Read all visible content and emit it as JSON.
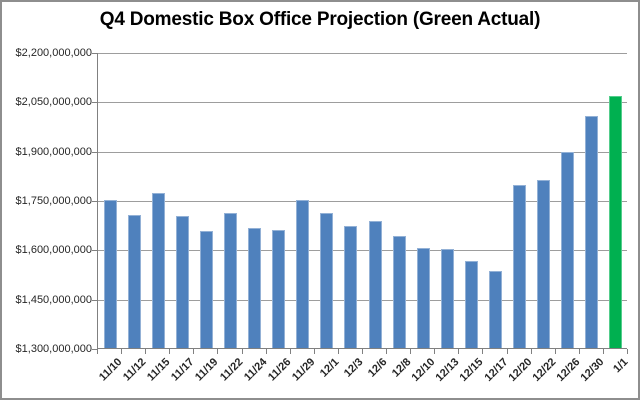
{
  "window": {
    "background": "#ffffff",
    "frame_border_color": "#8e8e8e"
  },
  "chart_data": {
    "type": "bar",
    "title": "Q4 Domestic Box Office Projection (Green Actual)",
    "categories": [
      "11/10",
      "11/12",
      "11/15",
      "11/17",
      "11/19",
      "11/22",
      "11/24",
      "11/26",
      "11/29",
      "12/1",
      "12/3",
      "12/6",
      "12/8",
      "12/10",
      "12/13",
      "12/15",
      "12/17",
      "12/20",
      "12/22",
      "12/26",
      "12/30",
      "1/1"
    ],
    "values": [
      1750000000,
      1705000000,
      1770000000,
      1700000000,
      1655000000,
      1710000000,
      1665000000,
      1660000000,
      1750000000,
      1710000000,
      1670000000,
      1685000000,
      1640000000,
      1605000000,
      1600000000,
      1565000000,
      1535000000,
      1795000000,
      1810000000,
      1895000000,
      2005000000,
      2065000000
    ],
    "actual_index": 21,
    "bar_color": "#4f81bd",
    "bar_edge_color": "#93b1d6",
    "actual_color": "#00b050",
    "actual_edge_color": "#53cd8c",
    "ylim": [
      1300000000,
      2200000000
    ],
    "ytick_step": 150000000,
    "ytick_labels": [
      "$1,300,000,000",
      "$1,450,000,000",
      "$1,600,000,000",
      "$1,750,000,000",
      "$1,900,000,000",
      "$2,050,000,000",
      "$2,200,000,000"
    ],
    "xlabel": "",
    "ylabel": "",
    "grid": true,
    "gridline_color": "#9d9d9d",
    "axis_color": "#808080",
    "legend": "none"
  }
}
